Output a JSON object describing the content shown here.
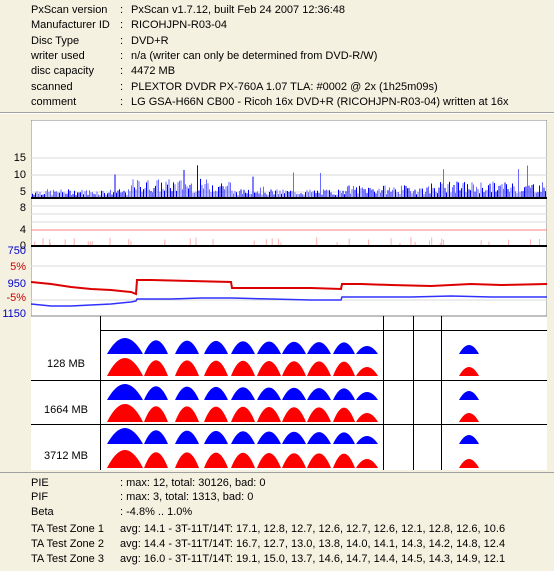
{
  "info": [
    {
      "label": "PxScan version",
      "value": "PxScan v1.7.12, built Feb 24 2007 12:36:48"
    },
    {
      "label": "Manufacturer ID",
      "value": "RICOHJPN-R03-04"
    },
    {
      "label": "Disc Type",
      "value": "DVD+R"
    },
    {
      "label": "writer used",
      "value": "n/a (writer can only be determined from DVD-R/W)"
    },
    {
      "label": "disc capacity",
      "value": "4472 MB"
    },
    {
      "label": "scanned",
      "value": "PLEXTOR DVDR PX-760A 1.07 TLA: #0002 @ 2x (1h25m09s)"
    },
    {
      "label": "comment",
      "value": "LG GSA-H66N CB00 - Ricoh 16x DVD+R (RICOHJPN-R03-04) written at 16x"
    }
  ],
  "colon": ":",
  "pie_axis": [
    "15",
    "10",
    "5"
  ],
  "pif_axis": [
    "8",
    "4",
    "0"
  ],
  "jitter_axis": [
    {
      "text": "750",
      "color": "#0000cc"
    },
    {
      "text": "5%",
      "color": "#cc0000"
    },
    {
      "text": "950",
      "color": "#0000cc"
    },
    {
      "text": "-5%",
      "color": "#cc0000"
    },
    {
      "text": "1150",
      "color": "#0000cc"
    }
  ],
  "zones": [
    {
      "label": "128 MB"
    },
    {
      "label": "1664 MB"
    },
    {
      "label": "3712 MB"
    }
  ],
  "stats": [
    {
      "label": "PIE",
      "value": ": max: 12, total: 30126, bad: 0"
    },
    {
      "label": "PIF",
      "value": ": max: 3, total: 1313, bad: 0"
    },
    {
      "label": "Beta",
      "value": ": -4.8% .. 1.0%"
    },
    {
      "label": "TA Test Zone 1",
      "value": "avg: 14.1 - 3T-11T/14T: 17.1, 12.8, 12.7, 12.6, 12.7, 12.6, 12.1, 12.8, 12.6, 10.6"
    },
    {
      "label": "TA Test Zone 2",
      "value": "avg: 14.4 - 3T-11T/14T: 16.7, 12.7, 13.0, 13.8, 14.0, 14.1, 14.3, 14.2, 14.8, 12.4"
    },
    {
      "label": "TA Test Zone 3",
      "value": "avg: 16.0 - 3T-11T/14T: 19.1, 15.0, 13.7, 14.6, 14.7, 14.4, 14.5, 14.3, 14.9, 12.1"
    }
  ],
  "colors": {
    "pie": "#0000ff",
    "pif": "#ff0000",
    "background": "#f5f1e1"
  }
}
